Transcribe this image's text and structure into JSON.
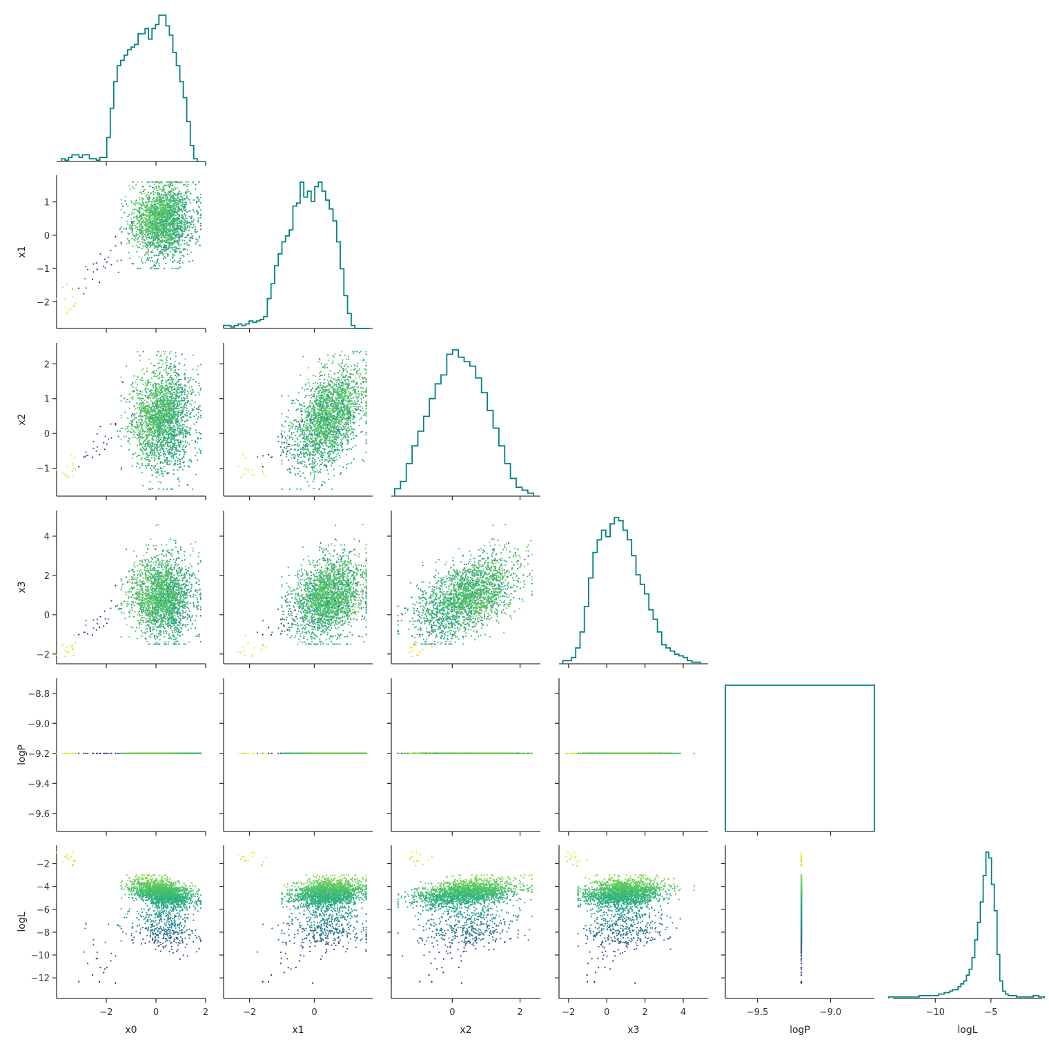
{
  "chart_data": {
    "type": "scatter",
    "title": "",
    "layout": "corner",
    "variables": [
      "x0",
      "x1",
      "x2",
      "x3",
      "logP",
      "logL"
    ],
    "axis_labels": {
      "x0": "x0",
      "x1": "x1",
      "x2": "x2",
      "x3": "x3",
      "logP": "logP",
      "logL": "logL"
    },
    "ranges": {
      "x0": [
        -4.0,
        2.0
      ],
      "x1": [
        -2.8,
        1.8
      ],
      "x2": [
        -1.8,
        2.6
      ],
      "x3": [
        -2.5,
        5.3
      ],
      "logP": [
        -9.72,
        -8.7
      ],
      "logL": [
        -13.8,
        -0.4
      ]
    },
    "ticks": {
      "x0": [
        -2,
        0,
        2
      ],
      "x1": [
        -2,
        0
      ],
      "x2": [
        0,
        2
      ],
      "x3": [
        -2,
        0,
        2,
        4
      ],
      "logP": [
        -9.5,
        -9.0
      ],
      "logL": [
        -10,
        -5
      ]
    },
    "y_ticks": {
      "x1": [
        1,
        0,
        -1,
        -2
      ],
      "x2": [
        2,
        1,
        0,
        -1
      ],
      "x3": [
        4,
        2,
        0,
        -2
      ],
      "logP": [
        -8.8,
        -9.0,
        -9.2,
        -9.4,
        -9.6
      ],
      "logL": [
        -2,
        -4,
        -6,
        -8,
        -10,
        -12
      ]
    },
    "tick_labels": {
      "x0": [
        "−2",
        "0",
        "2"
      ],
      "x1": [
        "−2",
        "0"
      ],
      "x2": [
        "0",
        "2"
      ],
      "x3": [
        "−2",
        "0",
        "2",
        "4"
      ],
      "logP": [
        "−9.5",
        "−9.0"
      ],
      "logL": [
        "−10",
        "−5"
      ]
    },
    "y_tick_labels": {
      "x1": [
        "1",
        "0",
        "−1",
        "−2"
      ],
      "x2": [
        "2",
        "1",
        "0",
        "−1"
      ],
      "x3": [
        "4",
        "2",
        "0",
        "−2"
      ],
      "logP": [
        "−8.8",
        "−9.0",
        "−9.2",
        "−9.4",
        "−9.6"
      ],
      "logL": [
        "−2",
        "−4",
        "−6",
        "−8",
        "−10",
        "−12"
      ]
    },
    "histograms": {
      "x0": {
        "range": [
          -3.8,
          1.8
        ],
        "bins": 40,
        "counts": [
          0.02,
          0.01,
          0.03,
          0.05,
          0.05,
          0.03,
          0.05,
          0.05,
          0.02,
          0.02,
          0.01,
          0.03,
          0.03,
          0.18,
          0.4,
          0.6,
          0.72,
          0.76,
          0.8,
          0.84,
          0.86,
          0.88,
          0.96,
          0.96,
          1.0,
          0.92,
          1.0,
          1.03,
          1.1,
          1.1,
          1.02,
          0.95,
          0.82,
          0.72,
          0.6,
          0.48,
          0.3,
          0.12,
          0.02,
          0.0
        ]
      },
      "x1": {
        "range": [
          -2.8,
          1.7
        ],
        "bins": 40,
        "counts": [
          0.02,
          0.02,
          0.01,
          0.02,
          0.03,
          0.02,
          0.03,
          0.05,
          0.04,
          0.05,
          0.06,
          0.08,
          0.2,
          0.3,
          0.42,
          0.5,
          0.58,
          0.62,
          0.66,
          0.82,
          0.84,
          0.98,
          0.88,
          0.92,
          0.85,
          0.95,
          0.98,
          0.92,
          0.86,
          0.8,
          0.72,
          0.58,
          0.4,
          0.22,
          0.1,
          0.02,
          0.0,
          0.0,
          0.0,
          0.0
        ]
      },
      "x2": {
        "range": [
          -1.7,
          2.4
        ],
        "bins": 24,
        "counts": [
          0.05,
          0.1,
          0.22,
          0.34,
          0.44,
          0.54,
          0.66,
          0.76,
          0.82,
          0.96,
          0.99,
          0.94,
          0.91,
          0.88,
          0.8,
          0.7,
          0.58,
          0.46,
          0.34,
          0.22,
          0.12,
          0.06,
          0.04,
          0.02
        ]
      },
      "x3": {
        "range": [
          -2.3,
          4.9
        ],
        "bins": 32,
        "counts": [
          0.02,
          0.02,
          0.04,
          0.1,
          0.2,
          0.36,
          0.54,
          0.7,
          0.78,
          0.84,
          0.8,
          0.88,
          0.92,
          0.9,
          0.84,
          0.78,
          0.68,
          0.56,
          0.5,
          0.44,
          0.34,
          0.28,
          0.2,
          0.12,
          0.1,
          0.08,
          0.06,
          0.05,
          0.04,
          0.02,
          0.01,
          0.01
        ]
      },
      "logP": {
        "range": [
          -9.72,
          -8.7
        ],
        "bins": 1,
        "counts": [
          1.0
        ]
      },
      "logL": {
        "range": [
          -14.2,
          -0.2
        ],
        "bins": 56,
        "counts": [
          0.01,
          0.01,
          0.01,
          0.01,
          0.01,
          0.01,
          0.01,
          0.01,
          0.01,
          0.01,
          0.01,
          0.02,
          0.02,
          0.02,
          0.02,
          0.02,
          0.02,
          0.02,
          0.03,
          0.03,
          0.04,
          0.04,
          0.05,
          0.06,
          0.06,
          0.08,
          0.1,
          0.12,
          0.16,
          0.2,
          0.28,
          0.4,
          0.52,
          0.66,
          0.84,
          1.0,
          0.96,
          0.78,
          0.6,
          0.3,
          0.12,
          0.05,
          0.03,
          0.02,
          0.02,
          0.02,
          0.01,
          0.01,
          0.01,
          0.01,
          0.01,
          0.01,
          0.02,
          0.02,
          0.01,
          0.01
        ]
      }
    },
    "scatter_points": 2200,
    "logP_constant": -9.2,
    "colormap": "viridis",
    "color_by": "logL",
    "hist_color": "#008080",
    "axis_color": "#333333"
  }
}
